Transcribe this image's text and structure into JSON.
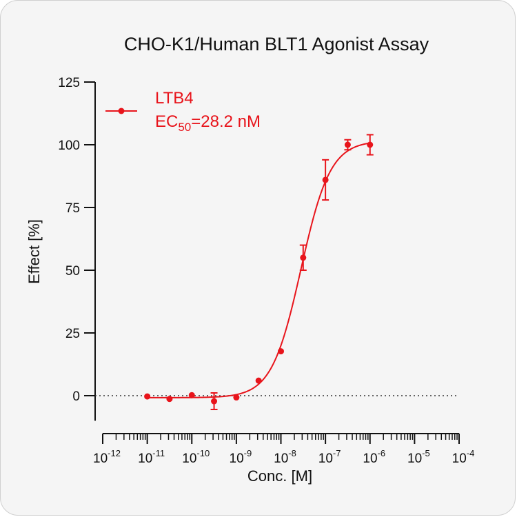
{
  "chart_data": {
    "type": "scatter",
    "title": "CHO-K1/Human BLT1 Agonist Assay",
    "xlabel": "Conc. [M]",
    "ylabel": "Effect  [%]",
    "x_scale": "log10",
    "xlim": [
      1e-12,
      0.0001
    ],
    "ylim": [
      -10,
      125
    ],
    "y_ticks": [
      0,
      25,
      50,
      75,
      100,
      125
    ],
    "x_tick_labels": [
      {
        "base": "10",
        "exp": "-12"
      },
      {
        "base": "10",
        "exp": "-11"
      },
      {
        "base": "10",
        "exp": "-10"
      },
      {
        "base": "10",
        "exp": "-9"
      },
      {
        "base": "10",
        "exp": "-8"
      },
      {
        "base": "10",
        "exp": "-7"
      },
      {
        "base": "10",
        "exp": "-6"
      },
      {
        "base": "10",
        "exp": "-5"
      },
      {
        "base": "10",
        "exp": "-4"
      }
    ],
    "baseline": {
      "y": 0,
      "style": "dotted"
    },
    "legend": {
      "placement": "top-left",
      "name": "LTB4",
      "ec50_prefix": "EC",
      "ec50_sub": "50",
      "ec50_value": "=28.2 nM"
    },
    "series": [
      {
        "name": "LTB4",
        "color": "#e8141b",
        "points": [
          {
            "x": 1e-11,
            "y": -0.3,
            "err": 0
          },
          {
            "x": 3.16e-11,
            "y": -1.3,
            "err": 0
          },
          {
            "x": 1e-10,
            "y": 0.2,
            "err": 0
          },
          {
            "x": 3.16e-10,
            "y": -2.2,
            "err": 3.3
          },
          {
            "x": 1e-09,
            "y": -0.7,
            "err": 0
          },
          {
            "x": 3.16e-09,
            "y": 6.0,
            "err": 0
          },
          {
            "x": 1e-08,
            "y": 17.7,
            "err": 0
          },
          {
            "x": 3.16e-08,
            "y": 55.0,
            "err": 5.0
          },
          {
            "x": 1e-07,
            "y": 86.0,
            "err": 8.0
          },
          {
            "x": 3.16e-07,
            "y": 100.0,
            "err": 2.0
          },
          {
            "x": 1e-06,
            "y": 100.0,
            "err": 4.0
          }
        ],
        "fit": {
          "bottom": -0.8,
          "top": 101.6,
          "logEC50": -7.55,
          "hill": 1.32
        }
      }
    ]
  }
}
